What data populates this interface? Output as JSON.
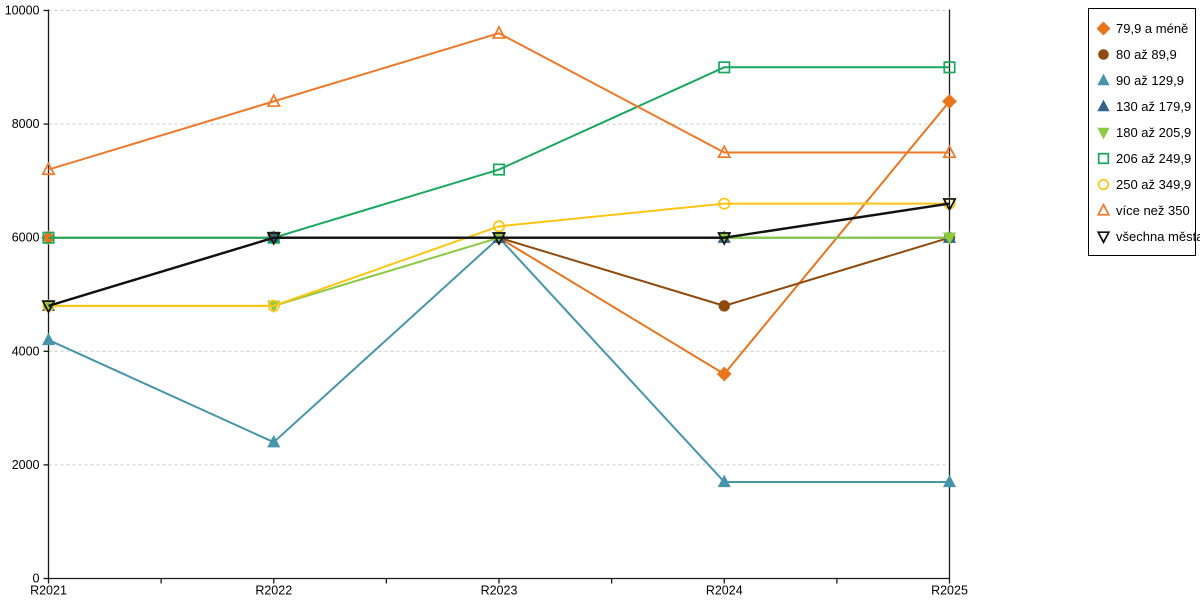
{
  "chart_data": {
    "type": "line",
    "title": "",
    "xlabel": "",
    "ylabel": "",
    "x_categories": [
      "R2021",
      "R2022",
      "R2023",
      "R2024",
      "R2025"
    ],
    "ylim": [
      0,
      10000
    ],
    "yticks": [
      0,
      2000,
      4000,
      6000,
      8000,
      10000
    ],
    "grid": "horizontal dashed",
    "legend_position": "top-right outside",
    "series": [
      {
        "name": "79,9 a méně",
        "color": "#e8741e",
        "marker": "diamond",
        "fill": "filled",
        "values": [
          6000,
          6000,
          6000,
          3600,
          8400
        ]
      },
      {
        "name": "80 až 89,9",
        "color": "#8f4a0e",
        "marker": "circle",
        "fill": "filled",
        "values": [
          4800,
          6000,
          6000,
          4800,
          6000
        ]
      },
      {
        "name": "90 až 129,9",
        "color": "#4794ab",
        "marker": "triangle-up",
        "fill": "filled",
        "values": [
          4200,
          2400,
          6000,
          1700,
          1700
        ]
      },
      {
        "name": "130 až 179,9",
        "color": "#33628f",
        "marker": "triangle-up",
        "fill": "filled",
        "values": [
          4800,
          6000,
          6000,
          6000,
          6000
        ]
      },
      {
        "name": "180 až 205,9",
        "color": "#8ccb41",
        "marker": "triangle-down",
        "fill": "filled",
        "values": [
          4800,
          4800,
          6000,
          6000,
          6000
        ]
      },
      {
        "name": "206 až 249,9",
        "color": "#17a85e",
        "marker": "square",
        "fill": "hollow",
        "values": [
          6000,
          6000,
          7200,
          9000,
          9000
        ]
      },
      {
        "name": "250 až 349,9",
        "color": "#fdc513",
        "marker": "circle",
        "fill": "hollow",
        "values": [
          4800,
          4800,
          6200,
          6600,
          6600
        ]
      },
      {
        "name": "více než 350",
        "color": "#f0782a",
        "marker": "triangle-up",
        "fill": "hollow",
        "values": [
          7200,
          8400,
          9600,
          7500,
          7500
        ]
      },
      {
        "name": "všechna města",
        "color": "#111111",
        "marker": "triangle-down",
        "fill": "hollow",
        "values": [
          4800,
          6000,
          6000,
          6000,
          6600
        ]
      }
    ],
    "colors": {
      "grid": "#c9c9c9",
      "axis": "#1a1a1a",
      "tick_label": "#000000"
    }
  }
}
